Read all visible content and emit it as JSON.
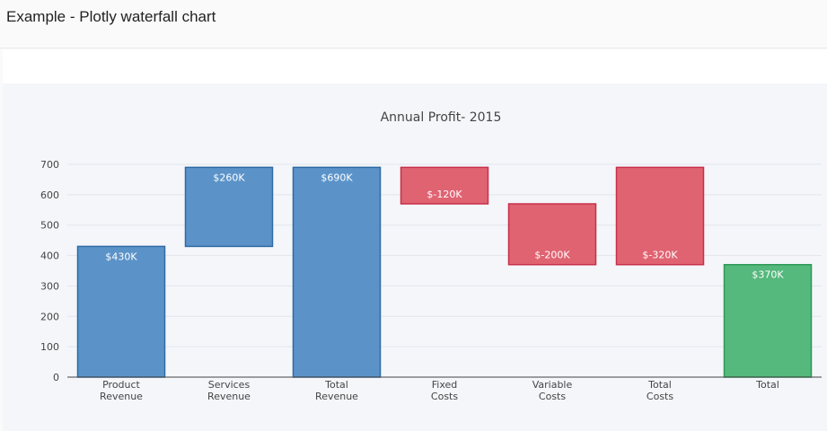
{
  "page": {
    "title": "Example - Plotly waterfall chart"
  },
  "chart_data": {
    "type": "bar",
    "subtype": "waterfall",
    "title": "Annual Profit- 2015",
    "xlabel": "",
    "ylabel": "",
    "ylim": [
      0,
      700
    ],
    "yticks": [
      0,
      100,
      200,
      300,
      400,
      500,
      600,
      700
    ],
    "grid": true,
    "legend": "none",
    "categories": [
      [
        "Product",
        "Revenue"
      ],
      [
        "Services",
        "Revenue"
      ],
      [
        "Total",
        "Revenue"
      ],
      [
        "Fixed",
        "Costs"
      ],
      [
        "Variable",
        "Costs"
      ],
      [
        "Total",
        "Costs"
      ],
      [
        "Total"
      ]
    ],
    "bars": [
      {
        "base": 0,
        "top": 430,
        "label": "$430K",
        "kind": "revenue",
        "label_pos": "top"
      },
      {
        "base": 430,
        "top": 690,
        "label": "$260K",
        "kind": "revenue",
        "label_pos": "top"
      },
      {
        "base": 0,
        "top": 690,
        "label": "$690K",
        "kind": "revenue",
        "label_pos": "top"
      },
      {
        "base": 570,
        "top": 690,
        "label": "$-120K",
        "kind": "cost",
        "label_pos": "bottom"
      },
      {
        "base": 370,
        "top": 570,
        "label": "$-200K",
        "kind": "cost",
        "label_pos": "bottom"
      },
      {
        "base": 370,
        "top": 690,
        "label": "$-320K",
        "kind": "cost",
        "label_pos": "bottom"
      },
      {
        "base": 0,
        "top": 370,
        "label": "$370K",
        "kind": "total",
        "label_pos": "top"
      }
    ],
    "colors": {
      "revenue": {
        "fill": "#5b93c9",
        "stroke": "#2e6aa3"
      },
      "cost": {
        "fill": "#e06372",
        "stroke": "#c8304a"
      },
      "total": {
        "fill": "#55b87c",
        "stroke": "#2e9a57"
      },
      "grid": "#e2e5ea",
      "axis": "#444444"
    }
  }
}
